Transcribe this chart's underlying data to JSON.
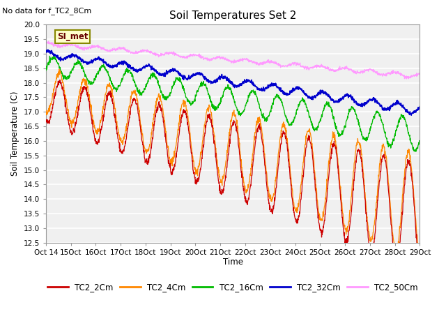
{
  "title": "Soil Temperatures Set 2",
  "note": "No data for f_TC2_8Cm",
  "ylabel": "Soil Temperature (C)",
  "xlabel": "Time",
  "ylim": [
    12.5,
    20.0
  ],
  "yticks": [
    12.5,
    13.0,
    13.5,
    14.0,
    14.5,
    15.0,
    15.5,
    16.0,
    16.5,
    17.0,
    17.5,
    18.0,
    18.5,
    19.0,
    19.5,
    20.0
  ],
  "xtick_labels": [
    "Oct 14",
    "Oct 15",
    "Oct 16",
    "Oct 17",
    "Oct 18",
    "Oct 19",
    "Oct 20",
    "Oct 21",
    "Oct 22",
    "Oct 23",
    "Oct 24",
    "Oct 25",
    "Oct 26",
    "Oct 27",
    "Oct 28",
    "Oct 29"
  ],
  "legend_labels": [
    "TC2_2Cm",
    "TC2_4Cm",
    "TC2_16Cm",
    "TC2_32Cm",
    "TC2_50Cm"
  ],
  "colors": {
    "TC2_2Cm": "#cc0000",
    "TC2_4Cm": "#ff8800",
    "TC2_16Cm": "#00bb00",
    "TC2_32Cm": "#0000cc",
    "TC2_50Cm": "#ff99ff"
  },
  "plot_bg": "#f0f0f0",
  "grid_color": "#ffffff",
  "annotation_text": "SI_met",
  "annotation_bg": "#ffffcc",
  "annotation_border": "#888800",
  "figsize": [
    6.4,
    4.8
  ],
  "dpi": 100
}
